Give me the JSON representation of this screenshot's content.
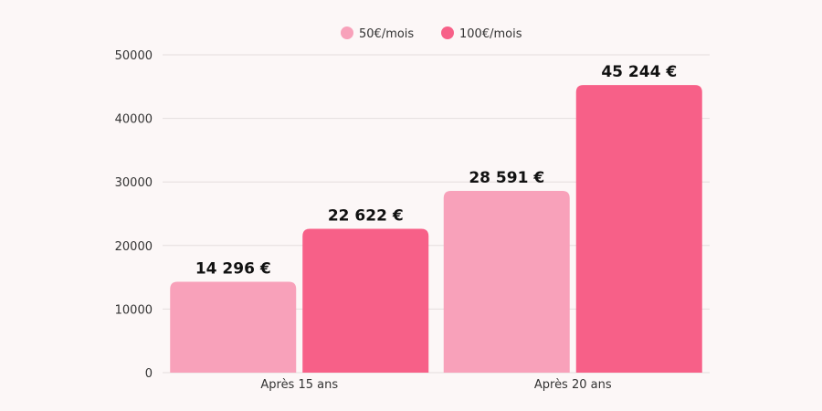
{
  "chart_data": {
    "type": "bar",
    "categories": [
      "Après 15 ans",
      "Après 20 ans"
    ],
    "series": [
      {
        "name": "50€/mois",
        "color": "#f8a1ba",
        "values": [
          14296,
          28591
        ],
        "labels": [
          "14 296 €",
          "28 591 €"
        ]
      },
      {
        "name": "100€/mois",
        "color": "#f76088",
        "values": [
          22622,
          45244
        ],
        "labels": [
          "22 622 €",
          "45 244 €"
        ]
      }
    ],
    "ylim": [
      0,
      50000
    ],
    "yticks": [
      0,
      10000,
      20000,
      30000,
      40000,
      50000
    ],
    "grid": true,
    "legend": "top",
    "xlabel": "",
    "ylabel": "",
    "title": ""
  }
}
